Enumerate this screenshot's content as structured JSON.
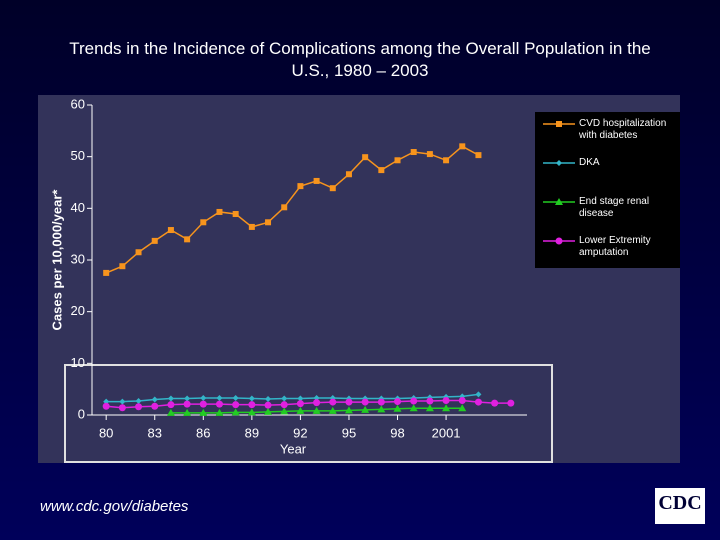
{
  "chart_data": {
    "type": "line",
    "title": "Trends in the Incidence of Complications among the Overall Population in the U.S., 1980 – 2003",
    "x_label": "Year",
    "y_label": "Cases per 10,000/year*",
    "x": [
      1980,
      1981,
      1982,
      1983,
      1984,
      1985,
      1986,
      1987,
      1988,
      1989,
      1990,
      1991,
      1992,
      1993,
      1994,
      1995,
      1996,
      1997,
      1998,
      1999,
      2000,
      2001,
      2002,
      2003,
      2004,
      2005
    ],
    "series": [
      {
        "name": "CVD hospitalization with diabetes",
        "color": "#f7941d",
        "marker": "square",
        "values": [
          27.5,
          28.8,
          31.5,
          33.7,
          35.8,
          34.0,
          37.3,
          39.3,
          38.9,
          36.4,
          37.3,
          40.2,
          44.3,
          45.3,
          43.9,
          46.6,
          49.9,
          47.4,
          49.3,
          50.9,
          50.5,
          49.3,
          52.0,
          50.3,
          null,
          null
        ]
      },
      {
        "name": "DKA",
        "color": "#33b5c8",
        "marker": "diamond",
        "values": [
          2.6,
          2.6,
          2.7,
          3.0,
          3.2,
          3.2,
          3.3,
          3.3,
          3.3,
          3.2,
          3.1,
          3.2,
          3.2,
          3.3,
          3.3,
          3.2,
          3.2,
          3.2,
          3.2,
          3.3,
          3.4,
          3.5,
          3.6,
          4.0,
          null,
          null
        ]
      },
      {
        "name": "End stage renal disease",
        "color": "#22cc22",
        "marker": "triangle",
        "values": [
          null,
          null,
          null,
          null,
          0.4,
          0.4,
          0.4,
          0.4,
          0.5,
          0.5,
          0.6,
          0.7,
          0.8,
          0.8,
          0.8,
          0.9,
          1.0,
          1.1,
          1.2,
          1.3,
          1.3,
          1.3,
          1.3,
          null,
          null,
          null
        ]
      },
      {
        "name": "Lower Extremity amputation",
        "color": "#e020e0",
        "marker": "circle",
        "values": [
          1.7,
          1.4,
          1.6,
          1.7,
          2.0,
          2.1,
          2.1,
          2.1,
          2.0,
          2.0,
          1.9,
          2.0,
          2.2,
          2.4,
          2.5,
          2.5,
          2.5,
          2.5,
          2.6,
          2.7,
          2.7,
          2.8,
          2.8,
          2.5,
          2.3,
          2.3
        ]
      }
    ],
    "xlim": [
      1979,
      2006
    ],
    "xticks": [
      {
        "value": 1980,
        "label": "80"
      },
      {
        "value": 1983,
        "label": "83"
      },
      {
        "value": 1986,
        "label": "86"
      },
      {
        "value": 1989,
        "label": "89"
      },
      {
        "value": 1992,
        "label": "92"
      },
      {
        "value": 1995,
        "label": "95"
      },
      {
        "value": 1998,
        "label": "98"
      },
      2001
    ],
    "ylim": [
      0,
      60
    ],
    "yticks": [
      0,
      10,
      20,
      30,
      40,
      50,
      60
    ],
    "grid": false,
    "legend": "upper right"
  },
  "footer": {
    "url": "www.cdc.gov/diabetes",
    "logo": "CDC"
  }
}
